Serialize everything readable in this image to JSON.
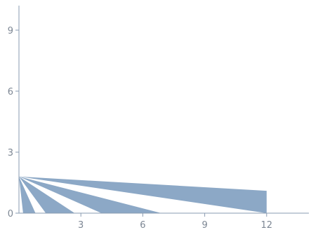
{
  "chart_data": {
    "type": "area",
    "title": "",
    "xlabel": "",
    "ylabel": "",
    "xlim": [
      0,
      13.5
    ],
    "ylim": [
      0,
      10.2
    ],
    "x_ticks": [
      3,
      6,
      9,
      12
    ],
    "y_ticks": [
      0,
      3,
      6,
      9
    ],
    "x_tick_labels": [
      "3",
      "6",
      "9",
      "12"
    ],
    "y_tick_labels": [
      "0",
      "3",
      "6",
      "9"
    ],
    "grid": false,
    "legend": "none",
    "fill_color": "#8ca8c6",
    "axis_color": "#8a9bb0",
    "series": [
      {
        "polygon": [
          [
            0,
            1.8
          ],
          [
            0.2,
            0
          ],
          [
            0.8,
            0
          ]
        ]
      },
      {
        "polygon": [
          [
            0,
            1.8
          ],
          [
            1.3,
            0
          ],
          [
            2.7,
            0
          ]
        ]
      },
      {
        "polygon": [
          [
            0,
            1.8
          ],
          [
            4.0,
            0
          ],
          [
            6.9,
            0
          ]
        ]
      },
      {
        "polygon": [
          [
            0,
            1.8
          ],
          [
            12.0,
            0
          ],
          [
            12.0,
            1.1
          ]
        ]
      }
    ]
  }
}
